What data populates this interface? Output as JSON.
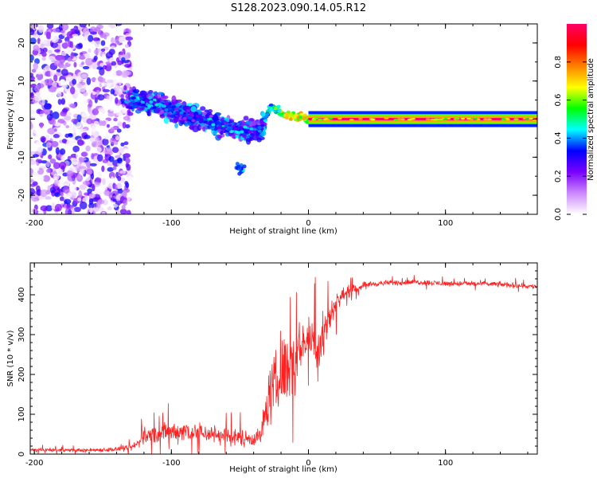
{
  "title": "S128.2023.090.14.05.R12",
  "chart_data": [
    {
      "type": "heatmap",
      "title": "",
      "xlabel": "Height of straight line (km)",
      "ylabel": "Frequency (Hz)",
      "xlim": [
        -203,
        167
      ],
      "ylim": [
        -25,
        25
      ],
      "x_ticks": [
        -200,
        -100,
        0,
        100
      ],
      "x_tick_labels": [
        "-200",
        "-100",
        "0",
        "100"
      ],
      "y_ticks": [
        20,
        10,
        0,
        -10,
        -20
      ],
      "y_tick_labels": [
        "20",
        "10",
        "0",
        "-10",
        "-20"
      ],
      "colorbar": {
        "label": "Normalized spectral amplitude",
        "range": [
          0,
          1
        ],
        "ticks": [
          0.0,
          0.2,
          0.4,
          0.6,
          0.8
        ],
        "tick_labels": [
          "0.0",
          "0.2",
          "0.4",
          "0.6",
          "0.8"
        ],
        "colors": [
          "#ffffff",
          "#cc88ff",
          "#7a00ff",
          "#0000ff",
          "#00ffff",
          "#00ff00",
          "#ffff00",
          "#ff8000",
          "#ff0000",
          "#ff0066"
        ]
      },
      "features": {
        "noise_region_x": [
          -203,
          -130
        ],
        "noise_amplitude": 0.35,
        "signal_track": {
          "x": [
            -130,
            -110,
            -90,
            -70,
            -50,
            -35,
            -28,
            -15,
            0,
            20,
            167
          ],
          "y": [
            5,
            4,
            1,
            -1,
            -3,
            -3,
            3,
            1,
            0,
            0,
            0
          ],
          "amplitude": [
            0.45,
            0.5,
            0.4,
            0.5,
            0.45,
            0.45,
            0.55,
            0.8,
            0.75,
            0.95,
            1.0
          ]
        },
        "blob": {
          "x": -50,
          "y": -13,
          "amplitude": 0.3
        }
      },
      "grid": false
    },
    {
      "type": "line",
      "title": "",
      "xlabel": "Height of straight line (km)",
      "ylabel": "SNR (10 * v/v)",
      "xlim": [
        -203,
        167
      ],
      "ylim": [
        0,
        480
      ],
      "x_ticks": [
        -200,
        -100,
        0,
        100
      ],
      "x_tick_labels": [
        "-200",
        "-100",
        "0",
        "100"
      ],
      "y_ticks": [
        0,
        100,
        200,
        300,
        400
      ],
      "y_tick_labels": [
        "0",
        "100",
        "200",
        "300",
        "400"
      ],
      "series": [
        {
          "color": "#ff2020",
          "x": [
            -203,
            -180,
            -160,
            -140,
            -130,
            -125,
            -120,
            -110,
            -100,
            -90,
            -80,
            -70,
            -60,
            -50,
            -40,
            -35,
            -32,
            -30,
            -28,
            -25,
            -22,
            -20,
            -18,
            -15,
            -12,
            -10,
            -8,
            -5,
            -2,
            0,
            2,
            5,
            8,
            10,
            12,
            14,
            16,
            18,
            20,
            25,
            30,
            35,
            40,
            50,
            60,
            80,
            100,
            120,
            140,
            167
          ],
          "y": [
            10,
            10,
            10,
            12,
            15,
            25,
            45,
            50,
            55,
            60,
            55,
            50,
            45,
            40,
            40,
            45,
            90,
            130,
            150,
            170,
            180,
            190,
            210,
            220,
            230,
            240,
            260,
            270,
            290,
            300,
            280,
            270,
            270,
            300,
            320,
            330,
            350,
            365,
            380,
            400,
            410,
            415,
            425,
            428,
            430,
            432,
            428,
            428,
            426,
            420
          ],
          "noise_amplitude": [
            7,
            7,
            7,
            9,
            12,
            18,
            32,
            36,
            40,
            42,
            40,
            36,
            34,
            32,
            30,
            35,
            70,
            90,
            110,
            120,
            125,
            130,
            135,
            135,
            130,
            120,
            100,
            90,
            80,
            70,
            80,
            100,
            120,
            130,
            100,
            70,
            55,
            40,
            35,
            25,
            20,
            15,
            12,
            10,
            10,
            10,
            10,
            10,
            10,
            10
          ]
        }
      ],
      "grid": false
    }
  ]
}
